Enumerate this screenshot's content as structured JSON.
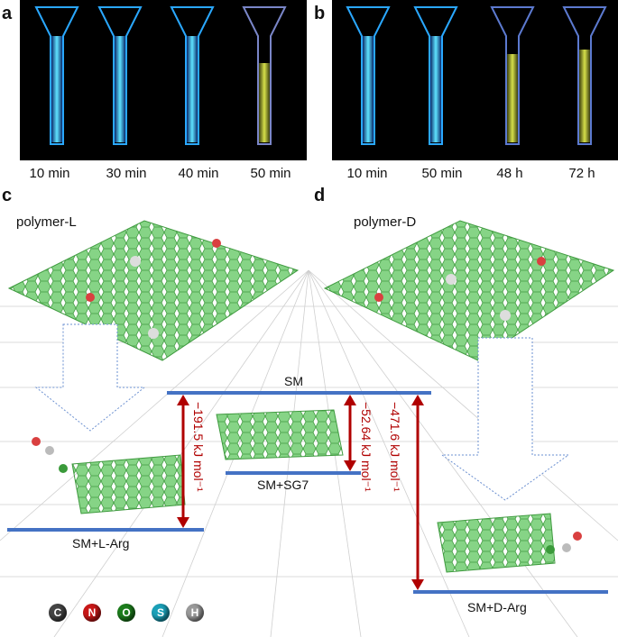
{
  "panels": {
    "a": {
      "letter": "a",
      "times": [
        "10 min",
        "30 min",
        "40 min",
        "50 min"
      ]
    },
    "b": {
      "letter": "b",
      "times": [
        "10 min",
        "50 min",
        "48 h",
        "72 h"
      ]
    },
    "c": {
      "letter": "c",
      "polymer": "polymer-L"
    },
    "d": {
      "letter": "d",
      "polymer": "polymer-D"
    }
  },
  "diagram": {
    "levels": {
      "sm": "SM",
      "sm_sg7": "SM+SG7",
      "sm_l_arg": "SM+L-Arg",
      "sm_d_arg": "SM+D-Arg"
    },
    "energies": {
      "l_arg": "−191.5 kJ mol⁻¹",
      "sg7": "−52.64 kJ mol⁻¹",
      "d_arg": "−471.6 kJ mol⁻¹"
    },
    "legend": [
      "C",
      "N",
      "O",
      "S",
      "H"
    ],
    "colors": {
      "level_line": "#4472c4",
      "arrow": "#b00000",
      "sheet": "#7ccf7c",
      "cuvette_glow": "#47d3ff",
      "gel_yellow": "#c8d43c"
    }
  }
}
